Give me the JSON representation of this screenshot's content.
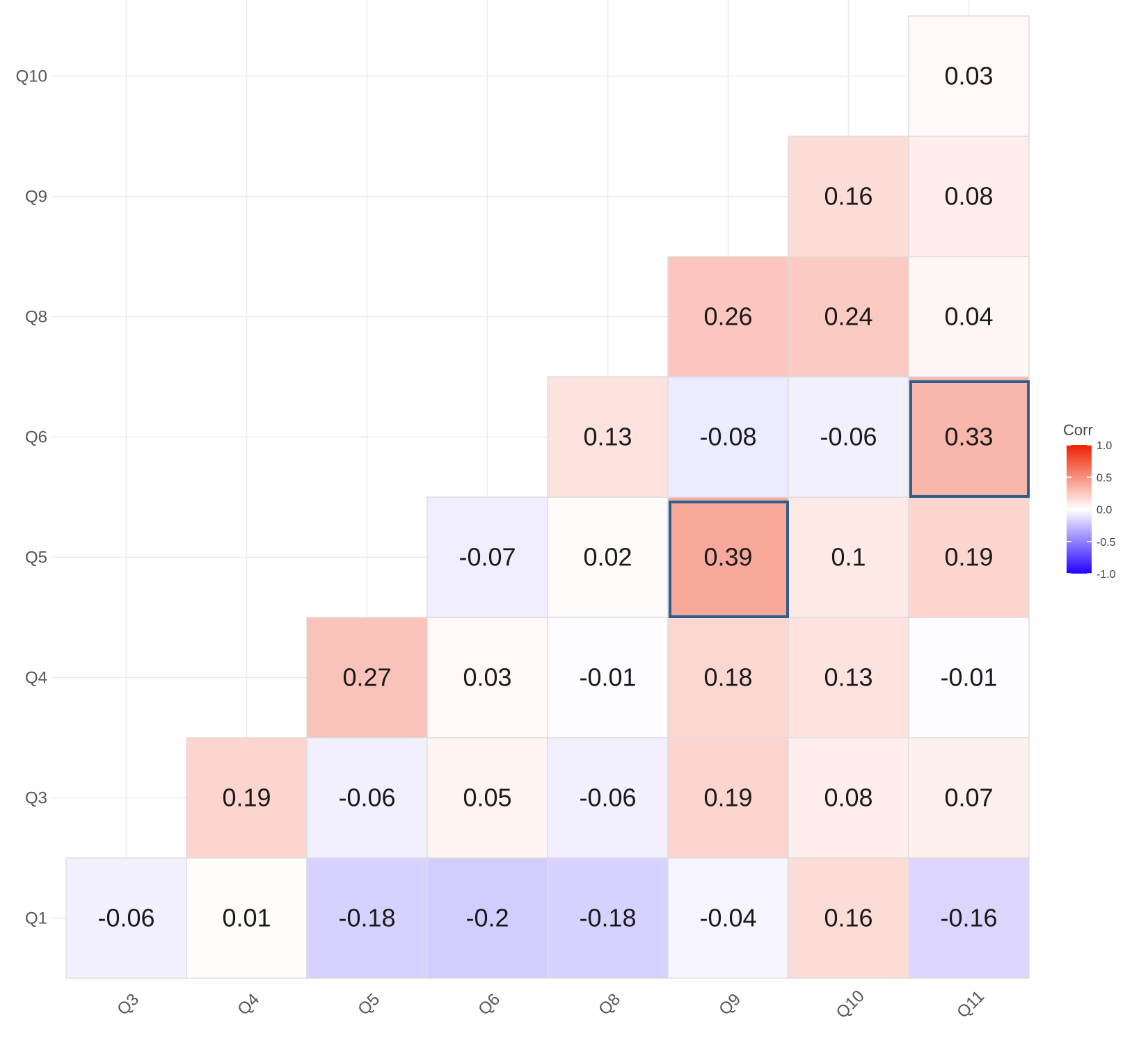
{
  "chart_data": {
    "type": "heatmap",
    "x_categories": [
      "Q3",
      "Q4",
      "Q5",
      "Q6",
      "Q8",
      "Q9",
      "Q10",
      "Q11"
    ],
    "y_categories": [
      "Q1",
      "Q3",
      "Q4",
      "Q5",
      "Q6",
      "Q8",
      "Q9",
      "Q10"
    ],
    "cells": [
      {
        "x": "Q3",
        "y": "Q1",
        "value": -0.06,
        "label": "-0.06"
      },
      {
        "x": "Q4",
        "y": "Q1",
        "value": 0.01,
        "label": "0.01"
      },
      {
        "x": "Q5",
        "y": "Q1",
        "value": -0.18,
        "label": "-0.18"
      },
      {
        "x": "Q6",
        "y": "Q1",
        "value": -0.2,
        "label": "-0.2"
      },
      {
        "x": "Q8",
        "y": "Q1",
        "value": -0.18,
        "label": "-0.18"
      },
      {
        "x": "Q9",
        "y": "Q1",
        "value": -0.04,
        "label": "-0.04"
      },
      {
        "x": "Q10",
        "y": "Q1",
        "value": 0.16,
        "label": "0.16"
      },
      {
        "x": "Q11",
        "y": "Q1",
        "value": -0.16,
        "label": "-0.16"
      },
      {
        "x": "Q4",
        "y": "Q3",
        "value": 0.19,
        "label": "0.19"
      },
      {
        "x": "Q5",
        "y": "Q3",
        "value": -0.06,
        "label": "-0.06"
      },
      {
        "x": "Q6",
        "y": "Q3",
        "value": 0.05,
        "label": "0.05"
      },
      {
        "x": "Q8",
        "y": "Q3",
        "value": -0.06,
        "label": "-0.06"
      },
      {
        "x": "Q9",
        "y": "Q3",
        "value": 0.19,
        "label": "0.19"
      },
      {
        "x": "Q10",
        "y": "Q3",
        "value": 0.08,
        "label": "0.08"
      },
      {
        "x": "Q11",
        "y": "Q3",
        "value": 0.07,
        "label": "0.07"
      },
      {
        "x": "Q5",
        "y": "Q4",
        "value": 0.27,
        "label": "0.27"
      },
      {
        "x": "Q6",
        "y": "Q4",
        "value": 0.03,
        "label": "0.03"
      },
      {
        "x": "Q8",
        "y": "Q4",
        "value": -0.01,
        "label": "-0.01"
      },
      {
        "x": "Q9",
        "y": "Q4",
        "value": 0.18,
        "label": "0.18"
      },
      {
        "x": "Q10",
        "y": "Q4",
        "value": 0.13,
        "label": "0.13"
      },
      {
        "x": "Q11",
        "y": "Q4",
        "value": -0.01,
        "label": "-0.01"
      },
      {
        "x": "Q6",
        "y": "Q5",
        "value": -0.07,
        "label": "-0.07"
      },
      {
        "x": "Q8",
        "y": "Q5",
        "value": 0.02,
        "label": "0.02"
      },
      {
        "x": "Q9",
        "y": "Q5",
        "value": 0.39,
        "label": "0.39",
        "highlighted": true
      },
      {
        "x": "Q10",
        "y": "Q5",
        "value": 0.1,
        "label": "0.1"
      },
      {
        "x": "Q11",
        "y": "Q5",
        "value": 0.19,
        "label": "0.19"
      },
      {
        "x": "Q8",
        "y": "Q6",
        "value": 0.13,
        "label": "0.13"
      },
      {
        "x": "Q9",
        "y": "Q6",
        "value": -0.08,
        "label": "-0.08"
      },
      {
        "x": "Q10",
        "y": "Q6",
        "value": -0.06,
        "label": "-0.06"
      },
      {
        "x": "Q11",
        "y": "Q6",
        "value": 0.33,
        "label": "0.33",
        "highlighted": true
      },
      {
        "x": "Q9",
        "y": "Q8",
        "value": 0.26,
        "label": "0.26"
      },
      {
        "x": "Q10",
        "y": "Q8",
        "value": 0.24,
        "label": "0.24"
      },
      {
        "x": "Q11",
        "y": "Q8",
        "value": 0.04,
        "label": "0.04"
      },
      {
        "x": "Q10",
        "y": "Q9",
        "value": 0.16,
        "label": "0.16"
      },
      {
        "x": "Q11",
        "y": "Q9",
        "value": 0.08,
        "label": "0.08"
      },
      {
        "x": "Q11",
        "y": "Q10",
        "value": 0.03,
        "label": "0.03"
      }
    ],
    "legend": {
      "title": "Corr",
      "ticks": [
        "1.0",
        "0.5",
        "0.0",
        "-0.5",
        "-1.0"
      ],
      "tick_values": [
        1.0,
        0.5,
        0.0,
        -0.5,
        -1.0
      ],
      "range": [
        -1.0,
        1.0
      ],
      "placement": "right"
    },
    "colors": {
      "positive": "#EE2200",
      "neutral": "#FFFFFF",
      "negative": "#2200FF",
      "highlight_border": "#2F5F8A",
      "grid": "#EBEBEB",
      "cell_border": "#DDDDDD"
    },
    "grid": true,
    "x_tick_rotation": "45deg"
  }
}
